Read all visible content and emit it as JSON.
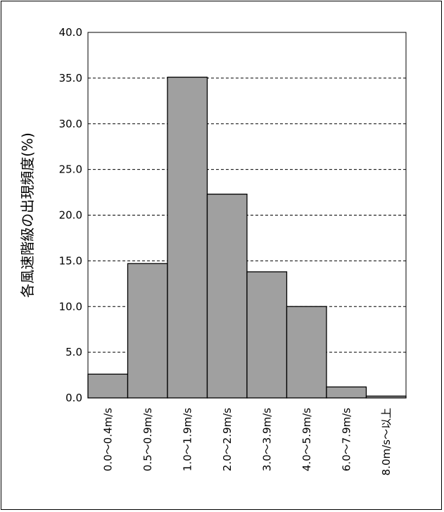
{
  "chart_data": {
    "type": "bar",
    "title": "",
    "xlabel": "",
    "ylabel": "各風速階級の出現頻度(%)",
    "categories": [
      "0.0～0.4m/s",
      "0.5～0.9m/s",
      "1.0～1.9m/s",
      "2.0～2.9m/s",
      "3.0～3.9m/s",
      "4.0～5.9m/s",
      "6.0～7.9m/s",
      "8.0m/s～以上"
    ],
    "values": [
      2.6,
      14.7,
      35.1,
      22.3,
      13.8,
      10.0,
      1.2,
      0.2
    ],
    "ylim": [
      0,
      40
    ],
    "yticks": [
      "0.0",
      "5.0",
      "10.0",
      "15.0",
      "20.0",
      "25.0",
      "30.0",
      "35.0",
      "40.0"
    ],
    "grid": "horizontal dashed",
    "colors": {
      "bar": "#a0a0a0",
      "bar_edge": "#000000",
      "grid": "#000000"
    }
  }
}
